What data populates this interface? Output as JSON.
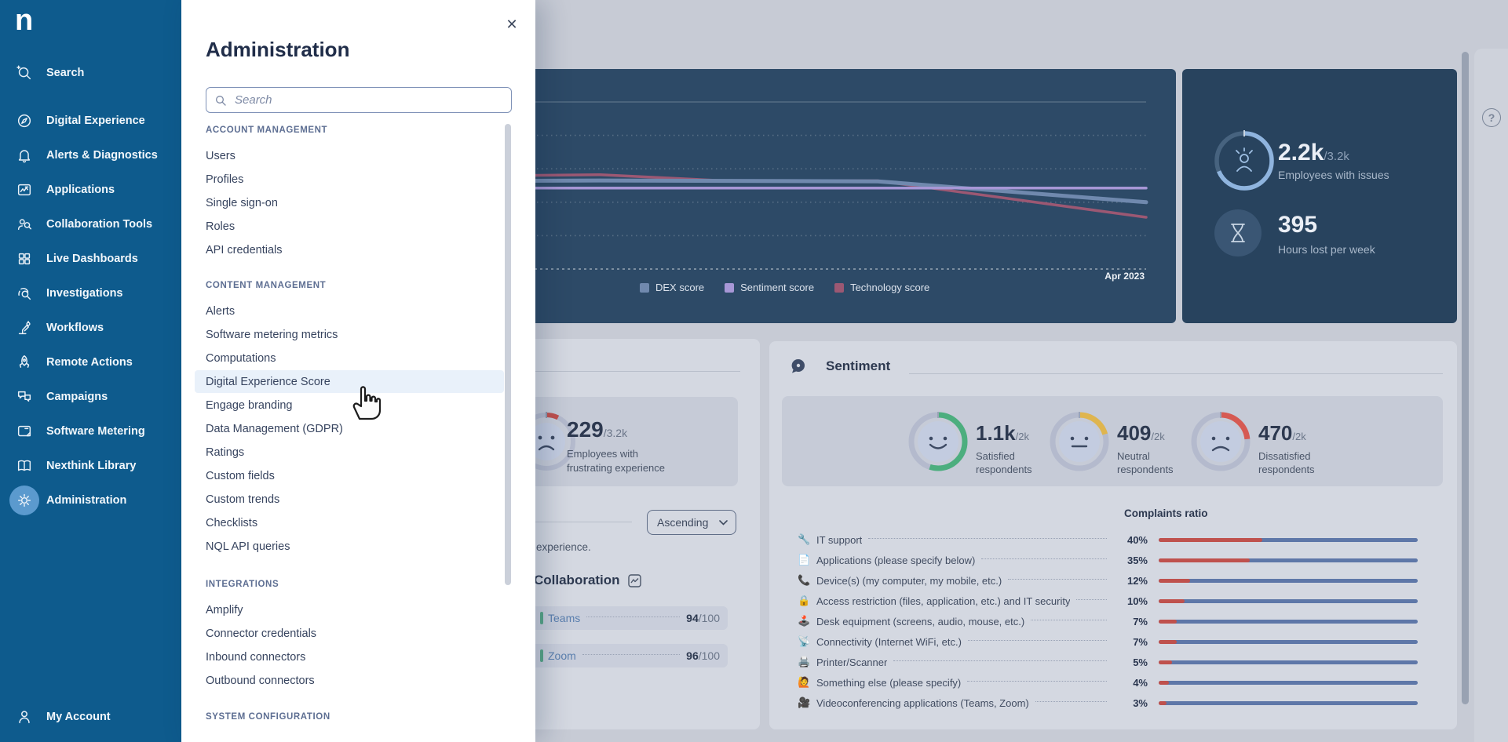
{
  "colors": {
    "sidebar_bg": "#0e5b8d",
    "sidebar_active_circle": "#5b9ace",
    "panel_highlight": "#e9f1fa",
    "page_bg": "#c7cbd5",
    "card_bg": "#d4d8e1",
    "inner_box_bg": "#c6cbd7",
    "chart_panel_bg": "#2d4a67",
    "stats_card_bg": "#28435e",
    "dex": "#7089ae",
    "sentiment_line": "#a797d6",
    "technology": "#9c5873",
    "satisfied": "#4cae7e",
    "neutral": "#dfb54e",
    "dissatisfied": "#d65a52",
    "bar_blue": "#5e77a8",
    "bar_red": "#bf514d",
    "collab_green": "#58a687",
    "gauge_arc": "#8fb4de",
    "frustration_red": "#c0504d"
  },
  "sidebar": {
    "logo_text": "n",
    "items": [
      {
        "label": "Search",
        "icon": "search-icon"
      },
      {
        "label": "Digital Experience",
        "icon": "compass-icon"
      },
      {
        "label": "Alerts & Diagnostics",
        "icon": "bell-icon"
      },
      {
        "label": "Applications",
        "icon": "app-window-icon"
      },
      {
        "label": "Collaboration Tools",
        "icon": "people-magnifier-icon"
      },
      {
        "label": "Live Dashboards",
        "icon": "dashboard-grid-icon"
      },
      {
        "label": "Investigations",
        "icon": "fingerprint-magnifier-icon"
      },
      {
        "label": "Workflows",
        "icon": "robot-arm-icon"
      },
      {
        "label": "Remote Actions",
        "icon": "rocket-icon"
      },
      {
        "label": "Campaigns",
        "icon": "chat-bubbles-icon"
      },
      {
        "label": "Software Metering",
        "icon": "metering-window-icon"
      },
      {
        "label": "Nexthink Library",
        "icon": "open-book-icon"
      },
      {
        "label": "Administration",
        "icon": "gear-icon",
        "active": true
      }
    ],
    "account": {
      "label": "My Account",
      "icon": "person-icon"
    }
  },
  "admin_panel": {
    "title": "Administration",
    "close_icon": "✕",
    "search": {
      "placeholder": "Search"
    },
    "sections": [
      {
        "header": "ACCOUNT MANAGEMENT",
        "items": [
          "Users",
          "Profiles",
          "Single sign-on",
          "Roles",
          "API credentials"
        ]
      },
      {
        "header": "CONTENT MANAGEMENT",
        "items": [
          "Alerts",
          "Software metering metrics",
          "Computations",
          "Digital Experience Score",
          "Engage branding",
          "Data Management (GDPR)",
          "Ratings",
          "Custom fields",
          "Custom trends",
          "Checklists",
          "NQL API queries"
        ],
        "active_item": "Digital Experience Score"
      },
      {
        "header": "INTEGRATIONS",
        "items": [
          "Amplify",
          "Connector credentials",
          "Inbound connectors",
          "Outbound connectors"
        ]
      },
      {
        "header": "SYSTEM CONFIGURATION",
        "items": []
      }
    ]
  },
  "chart_data": {
    "type": "line",
    "title": "",
    "x_axis_visible_label": "Apr 2023",
    "ylim": [
      0,
      100
    ],
    "grid": "dotted-horizontal",
    "legend_position": "bottom",
    "series": [
      {
        "name": "DEX score",
        "color": "#7089ae",
        "points": [
          [
            0,
            52
          ],
          [
            0.43,
            53
          ],
          [
            0.72,
            52.5
          ],
          [
            1,
            40
          ]
        ]
      },
      {
        "name": "Sentiment score",
        "color": "#a797d6",
        "points": [
          [
            0,
            48.5
          ],
          [
            1,
            48.5
          ]
        ]
      },
      {
        "name": "Technology score",
        "color": "#9c5873",
        "points": [
          [
            0,
            54
          ],
          [
            0.43,
            56.5
          ],
          [
            0.56,
            52.8
          ],
          [
            0.72,
            52.8
          ],
          [
            1,
            31
          ]
        ]
      }
    ]
  },
  "stats_card": {
    "employees_with_issues": {
      "value": "2.2k",
      "total": "/3.2k",
      "label": "Employees with issues",
      "fraction": 0.6875,
      "icon": "frustrated-person-icon"
    },
    "hours_lost": {
      "value": "395",
      "label": "Hours lost per week",
      "icon": "hourglass-icon"
    }
  },
  "experience_card": {
    "stat": {
      "value": "229",
      "total": "/3.2k",
      "label_line1": "Employees with",
      "label_line2": "frustrating experience",
      "fraction": 0.0716
    },
    "sort_dropdown": {
      "value": "Ascending",
      "icon": "chevron-down-icon"
    },
    "partial_text": "experience.",
    "collaboration": {
      "title": "Collaboration",
      "icon": "line-chart-icon",
      "rows": [
        {
          "name": "Teams",
          "value": "94",
          "total": "/100"
        },
        {
          "name": "Zoom",
          "value": "96",
          "total": "/100"
        }
      ]
    }
  },
  "sentiment_card": {
    "title": "Sentiment",
    "icon": "speech-bubble-icon",
    "donuts": [
      {
        "value": "1.1k",
        "total": "/2k",
        "label_line1": "Satisfied",
        "label_line2": "respondents",
        "fraction": 0.55,
        "color_key": "satisfied",
        "face": "happy"
      },
      {
        "value": "409",
        "total": "/2k",
        "label_line1": "Neutral",
        "label_line2": "respondents",
        "fraction": 0.205,
        "color_key": "neutral",
        "face": "neutral"
      },
      {
        "value": "470",
        "total": "/2k",
        "label_line1": "Dissatisfied",
        "label_line2": "respondents",
        "fraction": 0.235,
        "color_key": "dissatisfied",
        "face": "sad"
      }
    ],
    "complaints": {
      "title": "Complaints ratio",
      "rows": [
        {
          "emoji": "🔧",
          "icon": "wrench-icon",
          "label": "IT support",
          "pct": 40
        },
        {
          "emoji": "📄",
          "icon": "document-icon",
          "label": "Applications (please specify below)",
          "pct": 35
        },
        {
          "emoji": "📞",
          "icon": "phone-icon",
          "label": "Device(s) (my computer, my mobile, etc.)",
          "pct": 12
        },
        {
          "emoji": "🔒",
          "icon": "lock-icon",
          "label": "Access restriction (files, application, etc.) and IT security",
          "pct": 10
        },
        {
          "emoji": "🕹️",
          "icon": "desk-equipment-icon",
          "label": "Desk equipment (screens, audio, mouse, etc.)",
          "pct": 7
        },
        {
          "emoji": "📡",
          "icon": "antenna-icon",
          "label": "Connectivity (Internet WiFi, etc.)",
          "pct": 7
        },
        {
          "emoji": "🖨️",
          "icon": "printer-icon",
          "label": "Printer/Scanner",
          "pct": 5
        },
        {
          "emoji": "🙋",
          "icon": "person-raising-hand-icon",
          "label": "Something else (please specify)",
          "pct": 4
        },
        {
          "emoji": "🎥",
          "icon": "video-camera-icon",
          "label": "Videoconferencing applications (Teams, Zoom)",
          "pct": 3
        }
      ]
    }
  },
  "help_icon": "?"
}
